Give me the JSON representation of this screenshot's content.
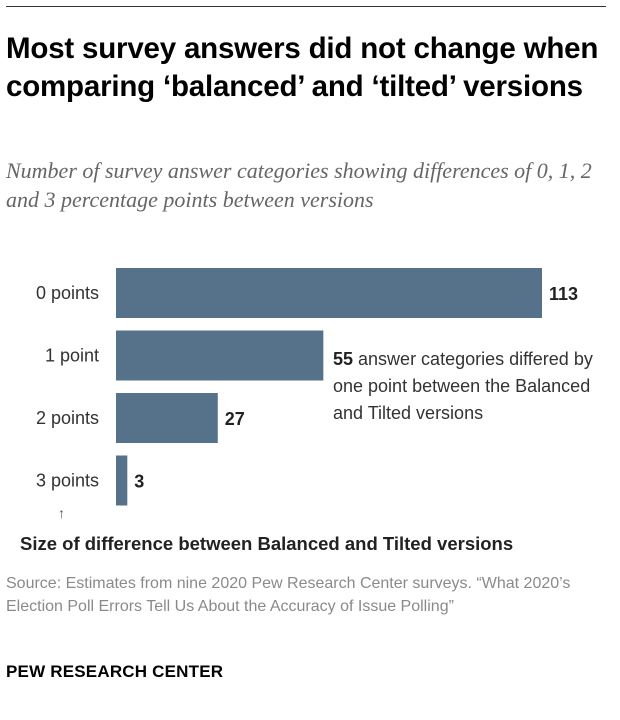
{
  "title": "Most survey answers did not change when comparing ‘balanced’ and ‘tilted’ versions",
  "subtitle": "Number of survey answer categories showing differences of 0, 1, 2 and 3 percentage points between versions",
  "chart_data": {
    "type": "bar",
    "orientation": "horizontal",
    "categories": [
      "0 points",
      "1 point",
      "2 points",
      "3 points"
    ],
    "values": [
      113,
      55,
      27,
      3
    ],
    "value_labels": [
      "113",
      "",
      "27",
      "3"
    ],
    "xlabel": "Size of difference between Balanced and Tilted versions",
    "ylabel": "",
    "xlim": [
      0,
      113
    ],
    "grid": false,
    "bar_color": "#56718a",
    "annotation": {
      "bold": "55",
      "text": " answer categories differed by one point between the Balanced and Tilted versions",
      "category": "1 point"
    }
  },
  "axis_arrow": "↑",
  "source": "Source: Estimates from nine 2020 Pew Research Center surveys. “What 2020’s Election Poll Errors Tell Us About the Accuracy of Issue Polling”",
  "brand": "PEW RESEARCH CENTER"
}
